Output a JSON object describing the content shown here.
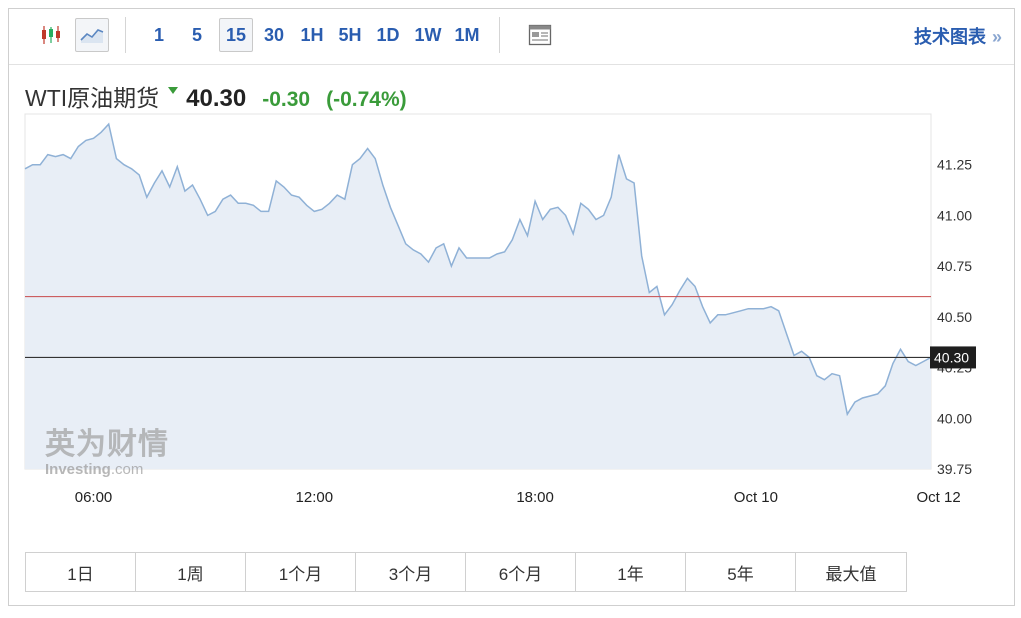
{
  "toolbar": {
    "candle_icon": "candlestick-icon",
    "line_icon": "line-chart-icon",
    "intervals": [
      "1",
      "5",
      "15",
      "30",
      "1H",
      "5H",
      "1D",
      "1W",
      "1M"
    ],
    "active_interval": "15",
    "news_icon": "newspaper-icon",
    "tech_chart_label": "技术图表",
    "tech_chart_arrow": "»"
  },
  "quote": {
    "name": "WTI原油期货",
    "price": "40.30",
    "change": "-0.30",
    "change_pct": "(-0.74%)",
    "down_color": "#3a9b3a"
  },
  "watermark": {
    "cn": "英为财情",
    "en_bold": "Investing",
    "en_suffix": ".com"
  },
  "chart_data": {
    "type": "area",
    "title": "",
    "xlabel": "",
    "ylabel": "",
    "ylim": [
      39.75,
      41.5
    ],
    "y_ticks": [
      "41.25",
      "41.00",
      "40.75",
      "40.50",
      "40.25",
      "40.00",
      "39.75"
    ],
    "x_ticks": [
      {
        "label": "06:00",
        "i": 9
      },
      {
        "label": "12:00",
        "i": 38
      },
      {
        "label": "18:00",
        "i": 67
      },
      {
        "label": "Oct 10",
        "i": 96
      },
      {
        "label": "Oct 12",
        "i": 120
      }
    ],
    "previous_close": 40.6,
    "last_price": 40.3,
    "last_price_label": "40.30",
    "line_color": "#8fb1d6",
    "fill_color": "#e8eef6",
    "prev_close_color": "#c94a4a",
    "last_line_color": "#333333",
    "series": [
      {
        "values": [
          41.23,
          41.25,
          41.25,
          41.3,
          41.29,
          41.3,
          41.28,
          41.34,
          41.37,
          41.38,
          41.41,
          41.45,
          41.28,
          41.25,
          41.23,
          41.2,
          41.09,
          41.16,
          41.22,
          41.14,
          41.24,
          41.12,
          41.15,
          41.08,
          41.0,
          41.02,
          41.08,
          41.1,
          41.06,
          41.06,
          41.05,
          41.02,
          41.02,
          41.17,
          41.14,
          41.1,
          41.09,
          41.05,
          41.02,
          41.03,
          41.06,
          41.1,
          41.08,
          41.25,
          41.28,
          41.33,
          41.28,
          41.15,
          41.04,
          40.95,
          40.86,
          40.83,
          40.81,
          40.77,
          40.84,
          40.86,
          40.75,
          40.84,
          40.79,
          40.79,
          40.79,
          40.79,
          40.81,
          40.82,
          40.88,
          40.98,
          40.9,
          41.07,
          40.98,
          41.03,
          41.04,
          41.0,
          40.91,
          41.06,
          41.03,
          40.98,
          41.0,
          41.09,
          41.3,
          41.18,
          41.16,
          40.8,
          40.62,
          40.65,
          40.51,
          40.56,
          40.63,
          40.69,
          40.65,
          40.55,
          40.47,
          40.51,
          40.51,
          40.52,
          40.53,
          40.54,
          40.54,
          40.54,
          40.55,
          40.53,
          40.42,
          40.31,
          40.33,
          40.3,
          40.21,
          40.19,
          40.22,
          40.21,
          40.02,
          40.08,
          40.1,
          40.11,
          40.12,
          40.16,
          40.27,
          40.34,
          40.28,
          40.26,
          40.28,
          40.3
        ]
      }
    ]
  },
  "ranges": [
    "1日",
    "1周",
    "1个月",
    "3个月",
    "6个月",
    "1年",
    "5年",
    "最大值"
  ]
}
